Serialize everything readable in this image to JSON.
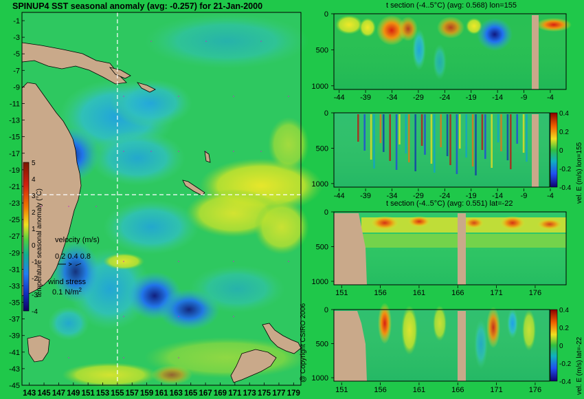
{
  "main_title": "SPINUP4 SST seasonal anomaly (avg: -0.257) for 21-Jan-2000",
  "copyright": "@ Copyright CSIRO 2006",
  "colors": {
    "land": "#c9a98a",
    "background": "#1fc84a"
  },
  "map": {
    "lat_ticks": [
      "-1",
      "-3",
      "-5",
      "-7",
      "-9",
      "-11",
      "-13",
      "-15",
      "-17",
      "-19",
      "-21",
      "-23",
      "-25",
      "-27",
      "-29",
      "-31",
      "-33",
      "-35",
      "-37",
      "-39",
      "-41",
      "-43",
      "-45"
    ],
    "lon_ticks": [
      "143",
      "145",
      "147",
      "149",
      "151",
      "153",
      "155",
      "157",
      "159",
      "161",
      "163",
      "165",
      "167",
      "169",
      "171",
      "173",
      "175",
      "177",
      "179"
    ],
    "colorbar_label": "temperature seasonal anomaly (°C)",
    "colorbar_ticks": [
      "5",
      "4",
      "3",
      "2",
      "1",
      "0",
      "-1",
      "-2",
      "-3",
      "-4"
    ],
    "velocity_label": "velocity (m/s)",
    "velocity_scale": "0.2 0.4 0.8",
    "wind_label": "wind stress",
    "wind_scale": "0.1 N/m",
    "wind_scale_sup": "2"
  },
  "sections": {
    "panel1_title": "t section (-4..5°C) (avg: 0.568) lon=155",
    "panel3_title": "t section (-4..5°C) (avg: 0.551) lat=-22",
    "depth_ticks": [
      "0",
      "500",
      "1000"
    ],
    "lat_axis_ticks": [
      "-44",
      "-39",
      "-34",
      "-29",
      "-24",
      "-19",
      "-14",
      "-9",
      "-4"
    ],
    "lon_axis_ticks": [
      "151",
      "156",
      "161",
      "166",
      "171",
      "176"
    ],
    "vel_label_lon": "vel. E (m/s) lon=155",
    "vel_label_lat": "vel. E (m/s) lat=-22",
    "vel_colorbar_ticks": [
      "0.4",
      "0.2",
      "0",
      "-0.2",
      "-0.4"
    ]
  },
  "chart_data": [
    {
      "type": "heatmap",
      "title": "SPINUP4 SST seasonal anomaly (avg: -0.257) for 21-Jan-2000",
      "xlim": [
        142,
        180
      ],
      "ylim": [
        -45,
        0
      ],
      "colorbar_range": [
        -4,
        5
      ],
      "crosshair": {
        "lon": 155,
        "lat": -22
      }
    },
    {
      "type": "heatmap",
      "title": "t section (-4..5°C) (avg: 0.568) lon=155",
      "xlim": [
        -45,
        -1
      ],
      "ylim": [
        1050,
        0
      ]
    },
    {
      "type": "heatmap",
      "xlim": [
        -45,
        -1
      ],
      "ylim": [
        1050,
        0
      ],
      "colorbar_range": [
        -0.4,
        0.4
      ]
    },
    {
      "type": "heatmap",
      "title": "t section (-4..5°C) (avg: 0.551) lat=-22",
      "xlim": [
        150,
        180
      ],
      "ylim": [
        1050,
        0
      ]
    },
    {
      "type": "heatmap",
      "xlim": [
        150,
        180
      ],
      "ylim": [
        1050,
        0
      ],
      "colorbar_range": [
        -0.4,
        0.4
      ]
    }
  ]
}
